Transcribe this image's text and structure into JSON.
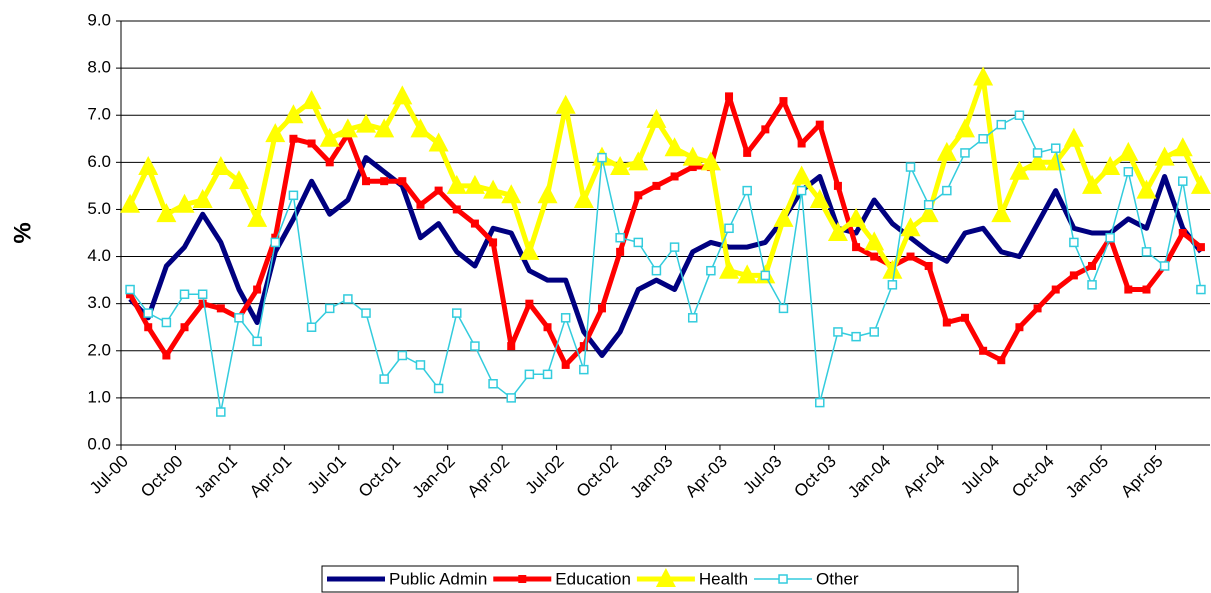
{
  "chart_data": {
    "type": "line",
    "y_label": "%",
    "categories": [
      "Jul-00",
      null,
      null,
      "Oct-00",
      null,
      null,
      "Jan-01",
      null,
      null,
      "Apr-01",
      null,
      null,
      "Jul-01",
      null,
      null,
      "Oct-01",
      null,
      null,
      "Jan-02",
      null,
      null,
      "Apr-02",
      null,
      null,
      "Jul-02",
      null,
      null,
      "Oct-02",
      null,
      null,
      "Jan-03",
      null,
      null,
      "Apr-03",
      null,
      null,
      "Jul-03",
      null,
      null,
      "Oct-03",
      null,
      null,
      "Jan-04",
      null,
      null,
      "Apr-04",
      null,
      null,
      "Jul-04",
      null,
      null,
      "Oct-04",
      null,
      null,
      "Jan-05",
      null,
      null,
      "Apr-05",
      null,
      null
    ],
    "series": [
      {
        "name": "Public Admin",
        "color": "#000080",
        "marker": "none",
        "values": [
          3.1,
          2.7,
          3.8,
          4.2,
          4.9,
          4.3,
          3.3,
          2.6,
          4.1,
          4.8,
          5.6,
          4.9,
          5.2,
          6.1,
          5.8,
          5.5,
          4.4,
          4.7,
          4.1,
          3.8,
          4.6,
          4.5,
          3.7,
          3.5,
          3.5,
          2.4,
          1.9,
          2.4,
          3.3,
          3.5,
          3.3,
          4.1,
          4.3,
          4.2,
          4.2,
          4.3,
          4.8,
          5.4,
          5.7,
          4.6,
          4.5,
          5.2,
          4.7,
          4.4,
          4.1,
          3.9,
          4.5,
          4.6,
          4.1,
          4.0,
          4.7,
          5.4,
          4.6,
          4.5,
          4.5,
          4.8,
          4.6,
          5.7,
          4.6,
          4.1
        ]
      },
      {
        "name": "Education",
        "color": "#ff0000",
        "marker": "square",
        "values": [
          3.2,
          2.5,
          1.9,
          2.5,
          3.0,
          2.9,
          2.7,
          3.3,
          4.4,
          6.5,
          6.4,
          6.0,
          6.6,
          5.6,
          5.6,
          5.6,
          5.1,
          5.4,
          5.0,
          4.7,
          4.3,
          2.1,
          3.0,
          2.5,
          1.7,
          2.1,
          2.9,
          4.1,
          5.3,
          5.5,
          5.7,
          5.9,
          5.9,
          7.4,
          6.2,
          6.7,
          7.3,
          6.4,
          6.8,
          5.5,
          4.2,
          4.0,
          3.8,
          4.0,
          3.8,
          2.6,
          2.7,
          2.0,
          1.8,
          2.5,
          2.9,
          3.3,
          3.6,
          3.8,
          4.4,
          3.3,
          3.3,
          3.8,
          4.5,
          4.2
        ]
      },
      {
        "name": "Health",
        "color": "#ffff00",
        "marker": "triangle",
        "values": [
          5.1,
          5.9,
          4.9,
          5.1,
          5.2,
          5.9,
          5.6,
          4.8,
          6.6,
          7.0,
          7.3,
          6.5,
          6.7,
          6.8,
          6.7,
          7.4,
          6.7,
          6.4,
          5.5,
          5.5,
          5.4,
          5.3,
          4.1,
          5.3,
          7.2,
          5.2,
          6.1,
          5.9,
          6.0,
          6.9,
          6.3,
          6.1,
          6.0,
          3.7,
          3.6,
          3.6,
          4.8,
          5.7,
          5.2,
          4.5,
          4.8,
          4.3,
          3.7,
          4.6,
          4.9,
          6.2,
          6.7,
          7.8,
          4.9,
          5.8,
          6.0,
          6.0,
          6.5,
          5.5,
          5.9,
          6.2,
          5.4,
          6.1,
          6.3,
          5.5
        ]
      },
      {
        "name": "Other",
        "color": "#33ccdd",
        "marker": "open-square",
        "values": [
          3.3,
          2.8,
          2.6,
          3.2,
          3.2,
          0.7,
          2.7,
          2.2,
          4.3,
          5.3,
          2.5,
          2.9,
          3.1,
          2.8,
          1.4,
          1.9,
          1.7,
          1.2,
          2.8,
          2.1,
          1.3,
          1.0,
          1.5,
          1.5,
          2.7,
          1.6,
          6.1,
          4.4,
          4.3,
          3.7,
          4.2,
          2.7,
          3.7,
          4.6,
          5.4,
          3.6,
          2.9,
          5.4,
          0.9,
          2.4,
          2.3,
          2.4,
          3.4,
          5.9,
          5.1,
          5.4,
          6.2,
          6.5,
          6.8,
          7.0,
          6.2,
          6.3,
          4.3,
          3.4,
          4.4,
          5.8,
          4.1,
          3.8,
          5.6,
          3.3
        ]
      }
    ],
    "ylim": [
      0,
      9
    ],
    "yticks": [
      {
        "value": 0,
        "label": "0.0"
      },
      {
        "value": 1,
        "label": "1.0"
      },
      {
        "value": 2,
        "label": "2.0"
      },
      {
        "value": 3,
        "label": "3.0"
      },
      {
        "value": 4,
        "label": "4.0"
      },
      {
        "value": 5,
        "label": "5.0"
      },
      {
        "value": 6,
        "label": "6.0"
      },
      {
        "value": 7,
        "label": "7.0"
      },
      {
        "value": 8,
        "label": "8.0"
      },
      {
        "value": 9,
        "label": "9.0"
      }
    ],
    "grid": true,
    "legend": "bottom"
  }
}
